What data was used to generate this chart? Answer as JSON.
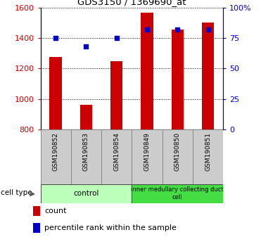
{
  "title": "GDS3150 / 1369690_at",
  "samples": [
    "GSM190852",
    "GSM190853",
    "GSM190854",
    "GSM190849",
    "GSM190850",
    "GSM190851"
  ],
  "counts": [
    1275,
    960,
    1250,
    1565,
    1455,
    1500
  ],
  "percentile_ranks": [
    75,
    68,
    75,
    82,
    82,
    82
  ],
  "ylim_left": [
    800,
    1600
  ],
  "ylim_right": [
    0,
    100
  ],
  "yticks_left": [
    800,
    1000,
    1200,
    1400,
    1600
  ],
  "yticks_right": [
    0,
    25,
    50,
    75,
    100
  ],
  "ytick_labels_right": [
    "0",
    "25",
    "50",
    "75",
    "100%"
  ],
  "bar_color": "#cc0000",
  "dot_color": "#0000cc",
  "bar_width": 0.4,
  "ctrl_color": "#bbffbb",
  "imcd_color": "#44dd44",
  "cell_type_label": "cell type",
  "legend_count_label": "count",
  "legend_percentile_label": "percentile rank within the sample",
  "tick_label_color_left": "#cc0000",
  "tick_label_color_right": "#0000cc",
  "label_bg_color": "#cccccc",
  "label_edge_color": "#888888"
}
